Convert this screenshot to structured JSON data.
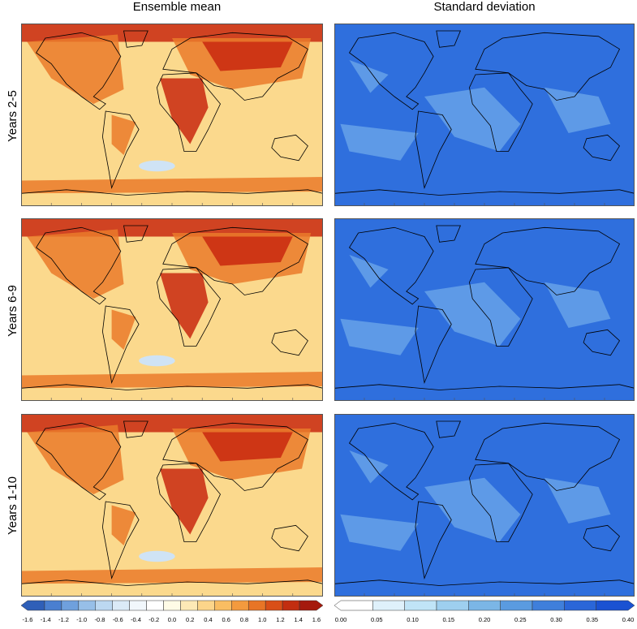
{
  "columns": {
    "left_title": "Ensemble mean",
    "right_title": "Standard deviation"
  },
  "rows": [
    {
      "label": "Years 2-5"
    },
    {
      "label": "Years 6-9"
    },
    {
      "label": "Years 1-10"
    }
  ],
  "colorbars": {
    "mean": {
      "ticks": [
        "-1.6",
        "-1.4",
        "-1.2",
        "-1.0",
        "-0.8",
        "-0.6",
        "-0.4",
        "-0.2",
        "0.0",
        "0.2",
        "0.4",
        "0.6",
        "0.8",
        "1.0",
        "1.2",
        "1.4",
        "1.6"
      ],
      "colors": [
        "#2f5fb8",
        "#4a7fd0",
        "#6fa0dd",
        "#97bfe8",
        "#bcd8f1",
        "#dbeaf7",
        "#f1f7fc",
        "#ffffff",
        "#fffbe6",
        "#fde9b6",
        "#fcd58a",
        "#f9bd62",
        "#f39a3e",
        "#e87526",
        "#d94f17",
        "#c22e10",
        "#a51a0d"
      ]
    },
    "std": {
      "ticks": [
        "0.00",
        "0.05",
        "0.10",
        "0.15",
        "0.20",
        "0.25",
        "0.30",
        "0.35",
        "0.40"
      ],
      "colors": [
        "#ffffff",
        "#dff1fb",
        "#c0e4f7",
        "#9ecfef",
        "#7bb6e6",
        "#5a9be0",
        "#3f7fdb",
        "#2a66d8",
        "#1a52d2"
      ]
    }
  },
  "palette": {
    "mean_background": "#fbd98d",
    "mean_high": "#c8280f",
    "mean_mid": "#ea7a2a",
    "std_background": "#2f6fdd",
    "std_light": "#6aa5ea",
    "coast": "#000000"
  }
}
